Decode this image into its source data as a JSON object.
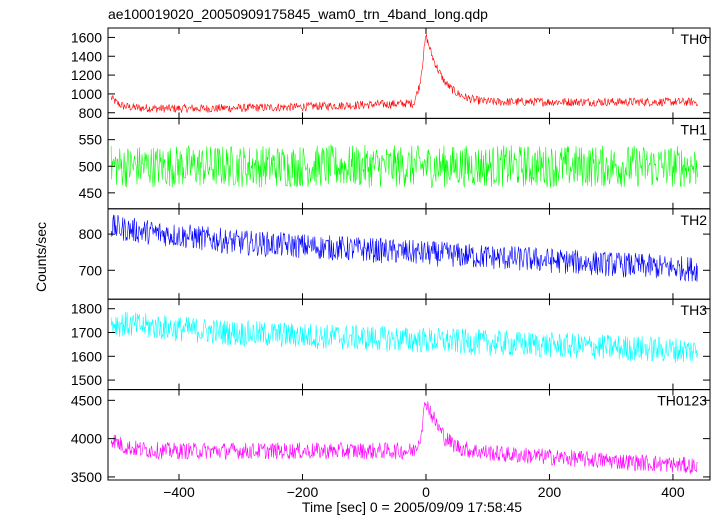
{
  "chart_data": {
    "type": "line",
    "title": "ae100019020_20050909175845_wam0_trn_4band_long.qdp",
    "xlabel": "Time [sec] 0 = 2005/09/09 17:58:45",
    "ylabel": "Counts/sec",
    "xlim": [
      -515,
      460
    ],
    "xticks": [
      -400,
      -200,
      0,
      200,
      400
    ],
    "grid": false,
    "legend": "none",
    "series": [
      {
        "name": "TH0",
        "color": "#ff0000",
        "ylim": [
          740,
          1700
        ],
        "yticks": [
          800,
          1000,
          1200,
          1400,
          1600
        ],
        "sample_every_sec": 10,
        "x_start": -510,
        "values": [
          960,
          900,
          870,
          860,
          855,
          850,
          850,
          845,
          845,
          845,
          845,
          845,
          845,
          845,
          845,
          845,
          845,
          845,
          850,
          850,
          850,
          850,
          850,
          855,
          855,
          855,
          855,
          860,
          860,
          860,
          860,
          865,
          865,
          870,
          870,
          870,
          875,
          875,
          880,
          880,
          880,
          885,
          885,
          890,
          890,
          890,
          895,
          895,
          900,
          900,
          1100,
          1620,
          1400,
          1250,
          1130,
          1060,
          1010,
          975,
          950,
          935,
          925,
          920,
          915,
          915,
          915,
          915,
          915,
          915,
          915,
          915,
          915,
          915,
          915,
          915,
          915,
          915,
          915,
          915,
          915,
          915,
          915,
          915,
          915,
          915,
          915,
          915,
          915,
          915,
          915,
          915,
          915,
          915,
          915,
          915,
          915,
          915
        ],
        "noise": 45
      },
      {
        "name": "TH1",
        "color": "#00ff00",
        "ylim": [
          420,
          590
        ],
        "yticks": [
          450,
          500,
          550
        ],
        "sample_every_sec": 10,
        "x_start": -510,
        "values": [
          500,
          500,
          500,
          500,
          500,
          500,
          500,
          500,
          500,
          500,
          500,
          500,
          500,
          500,
          500,
          500,
          500,
          500,
          500,
          500,
          500,
          500,
          500,
          500,
          500,
          500,
          500,
          500,
          500,
          500,
          500,
          500,
          500,
          500,
          500,
          500,
          500,
          500,
          500,
          500,
          500,
          500,
          500,
          500,
          500,
          500,
          500,
          500,
          500,
          500,
          500,
          500,
          500,
          500,
          500,
          500,
          500,
          500,
          500,
          500,
          500,
          500,
          500,
          500,
          500,
          500,
          500,
          500,
          500,
          500,
          500,
          500,
          500,
          500,
          500,
          500,
          500,
          500,
          500,
          500,
          500,
          500,
          500,
          500,
          500,
          500,
          500,
          500,
          500,
          500,
          500,
          500,
          500,
          500,
          500,
          500
        ],
        "noise": 40
      },
      {
        "name": "TH2",
        "color": "#0000ff",
        "ylim": [
          620,
          870
        ],
        "yticks": [
          700,
          800
        ],
        "sample_every_sec": 10,
        "x_start": -510,
        "values": [
          820,
          818,
          815,
          812,
          810,
          808,
          806,
          804,
          802,
          800,
          798,
          796,
          794,
          792,
          790,
          788,
          786,
          784,
          782,
          780,
          778,
          777,
          776,
          775,
          774,
          773,
          772,
          771,
          770,
          769,
          768,
          767,
          766,
          765,
          764,
          763,
          762,
          761,
          760,
          759,
          758,
          757,
          756,
          755,
          754,
          753,
          752,
          751,
          750,
          749,
          748,
          747,
          746,
          745,
          744,
          743,
          742,
          741,
          740,
          739,
          738,
          737,
          736,
          735,
          734,
          733,
          732,
          731,
          730,
          729,
          728,
          727,
          726,
          725,
          724,
          723,
          722,
          721,
          720,
          719,
          718,
          717,
          716,
          715,
          714,
          713,
          712,
          711,
          710,
          709,
          708,
          707,
          706,
          705,
          704,
          703
        ],
        "noise": 35
      },
      {
        "name": "TH3",
        "color": "#00ffff",
        "ylim": [
          1460,
          1840
        ],
        "yticks": [
          1500,
          1600,
          1700,
          1800
        ],
        "sample_every_sec": 10,
        "x_start": -510,
        "values": [
          1740,
          1738,
          1735,
          1732,
          1730,
          1728,
          1726,
          1724,
          1722,
          1720,
          1718,
          1716,
          1714,
          1712,
          1710,
          1708,
          1706,
          1704,
          1702,
          1700,
          1698,
          1697,
          1696,
          1695,
          1694,
          1693,
          1692,
          1691,
          1690,
          1689,
          1688,
          1687,
          1686,
          1685,
          1684,
          1683,
          1682,
          1681,
          1680,
          1679,
          1678,
          1677,
          1676,
          1675,
          1674,
          1673,
          1672,
          1671,
          1670,
          1669,
          1668,
          1667,
          1666,
          1665,
          1664,
          1663,
          1662,
          1661,
          1660,
          1659,
          1658,
          1657,
          1656,
          1655,
          1654,
          1653,
          1652,
          1651,
          1650,
          1649,
          1648,
          1647,
          1646,
          1645,
          1644,
          1643,
          1642,
          1641,
          1640,
          1639,
          1638,
          1637,
          1636,
          1635,
          1634,
          1633,
          1632,
          1631,
          1630,
          1629,
          1628,
          1627,
          1626,
          1625,
          1624,
          1623
        ],
        "noise": 55
      },
      {
        "name": "TH0123",
        "color": "#ff00ff",
        "ylim": [
          3460,
          4640
        ],
        "yticks": [
          3500,
          4000,
          4500
        ],
        "sample_every_sec": 10,
        "x_start": -510,
        "values": [
          4000,
          3950,
          3900,
          3880,
          3870,
          3860,
          3855,
          3850,
          3845,
          3840,
          3840,
          3840,
          3840,
          3840,
          3840,
          3840,
          3840,
          3840,
          3840,
          3840,
          3840,
          3840,
          3840,
          3840,
          3840,
          3840,
          3840,
          3840,
          3840,
          3840,
          3840,
          3840,
          3840,
          3840,
          3840,
          3840,
          3840,
          3840,
          3840,
          3840,
          3840,
          3840,
          3840,
          3840,
          3840,
          3840,
          3840,
          3840,
          3840,
          3840,
          4000,
          4500,
          4300,
          4150,
          4020,
          3950,
          3900,
          3870,
          3850,
          3840,
          3830,
          3820,
          3810,
          3800,
          3795,
          3790,
          3785,
          3780,
          3775,
          3770,
          3765,
          3760,
          3755,
          3750,
          3745,
          3740,
          3735,
          3730,
          3725,
          3720,
          3715,
          3710,
          3705,
          3700,
          3695,
          3690,
          3685,
          3680,
          3675,
          3670,
          3665,
          3660,
          3655,
          3650,
          3645,
          3640
        ],
        "noise": 110
      }
    ]
  }
}
